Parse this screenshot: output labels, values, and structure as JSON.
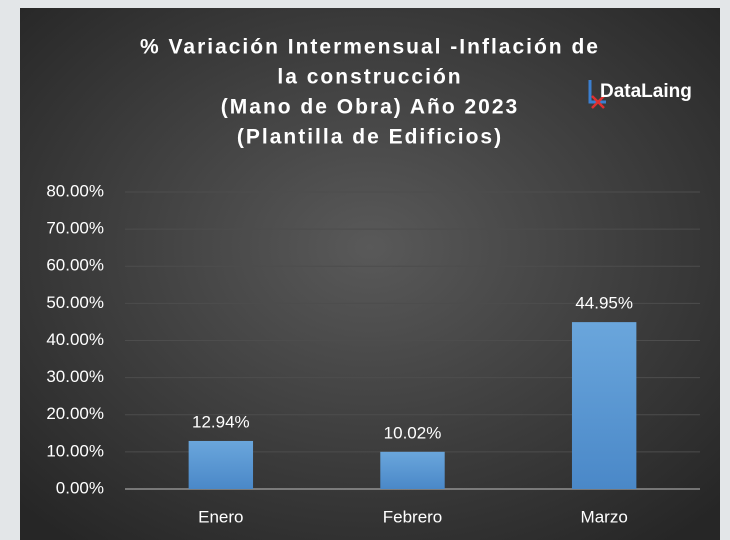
{
  "chart_data": {
    "type": "bar",
    "title": [
      "% Variación Intermensual -Inflación de",
      "la construcción",
      "(Mano de Obra) Año 2023",
      "(Plantilla de Edificios)"
    ],
    "logo": "DataLaing",
    "categories": [
      "Enero",
      "Febrero",
      "Marzo"
    ],
    "values": [
      12.94,
      10.02,
      44.95
    ],
    "value_labels": [
      "12.94%",
      "10.02%",
      "44.95%"
    ],
    "color": "#5b9bd5",
    "ylim": [
      0,
      80
    ],
    "yticks": [
      {
        "value": 0,
        "label": "0.00%"
      },
      {
        "value": 10,
        "label": "10.00%"
      },
      {
        "value": 20,
        "label": "20.00%"
      },
      {
        "value": 30,
        "label": "30.00%"
      },
      {
        "value": 40,
        "label": "40.00%"
      },
      {
        "value": 50,
        "label": "50.00%"
      },
      {
        "value": 60,
        "label": "60.00%"
      },
      {
        "value": 70,
        "label": "70.00%"
      },
      {
        "value": 80,
        "label": "80.00%"
      }
    ],
    "grid": true
  }
}
